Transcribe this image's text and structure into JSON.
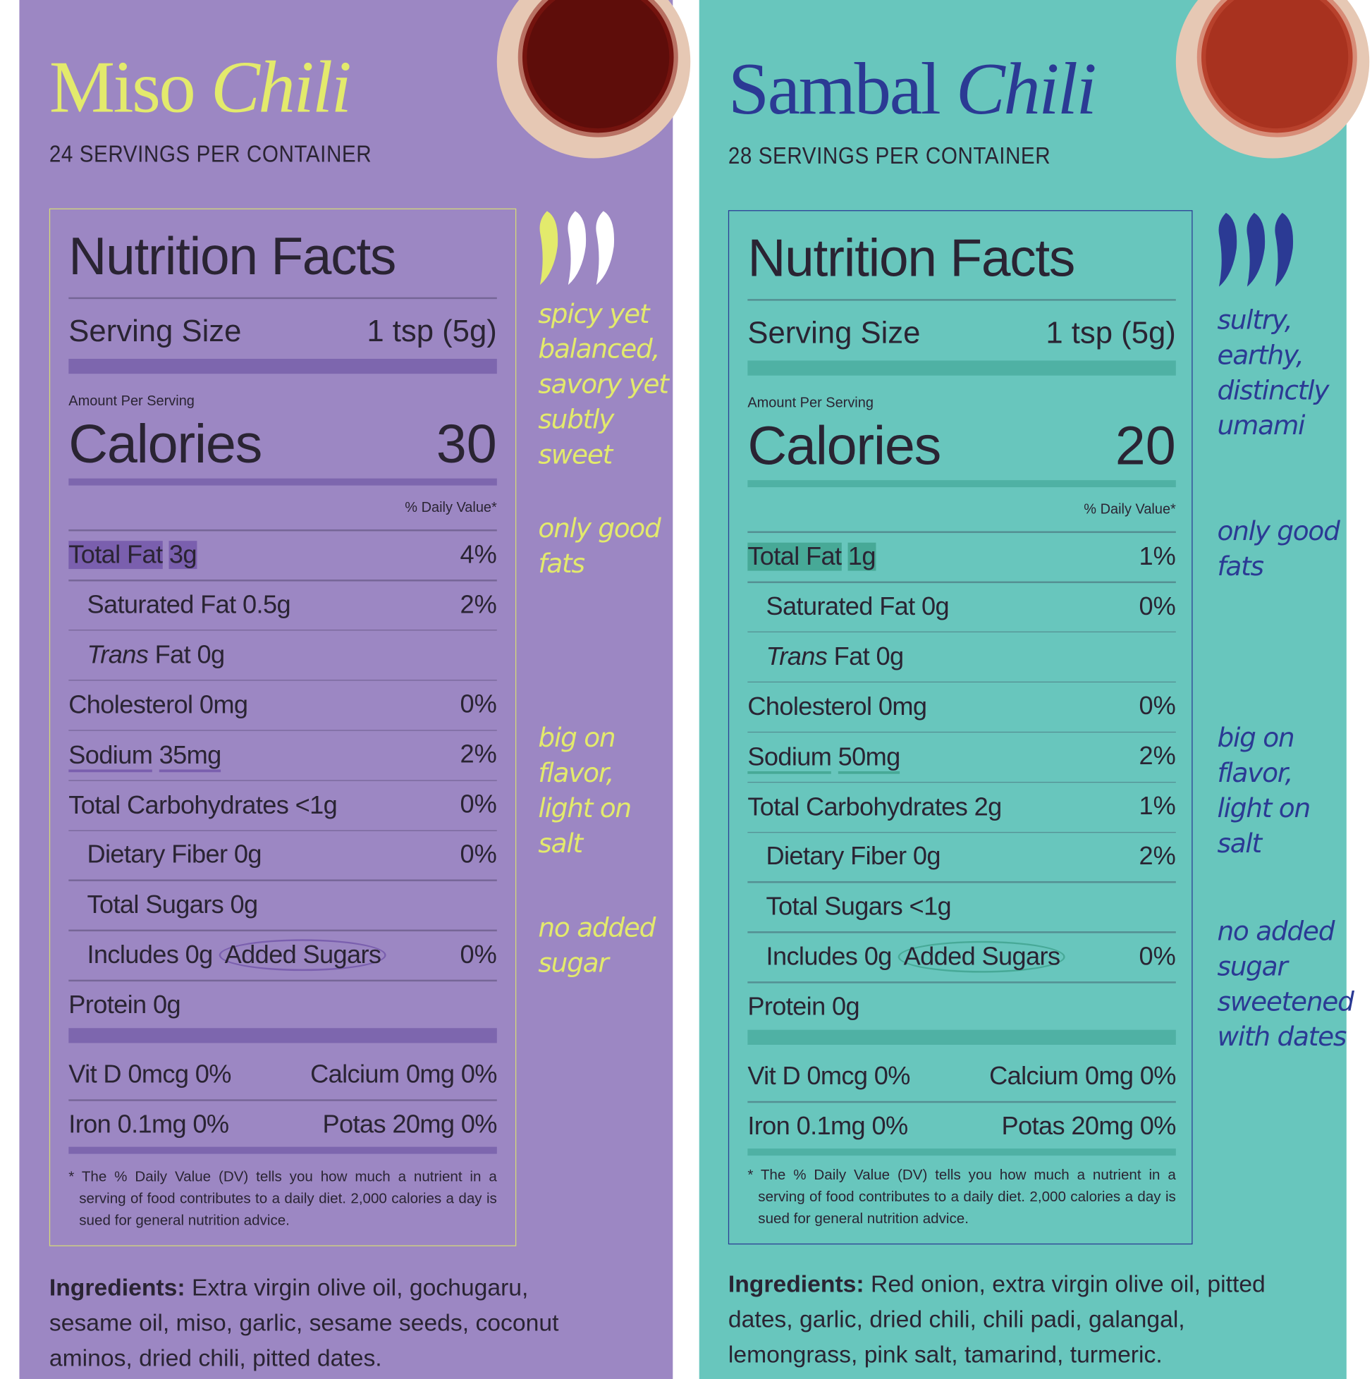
{
  "panels": [
    {
      "title_a": "Miso",
      "title_b": "Chili",
      "servings": "24 SERVINGS PER CONTAINER",
      "facts_title": "Nutrition Facts",
      "serving_size_label": "Serving Size",
      "serving_size": "1 tsp (5g)",
      "amount_per_serving": "Amount Per Serving",
      "calories_label": "Calories",
      "calories": "30",
      "daily_value_header": "% Daily Value*",
      "rows": [
        {
          "label": "Total Fat",
          "amount": "3g",
          "dv": "4%",
          "highlight": true
        },
        {
          "label": "Saturated Fat",
          "amount": "0.5g",
          "dv": "2%",
          "indent": true
        },
        {
          "label_em": "Trans",
          "label": "Fat",
          "amount": "0g",
          "indent": true
        },
        {
          "label": "Cholesterol",
          "amount": "0mg",
          "dv": "0%"
        },
        {
          "label": "Sodium",
          "amount": "35mg",
          "dv": "2%",
          "underline": true
        },
        {
          "label": "Total Carbohydrates",
          "amount": "<1g",
          "dv": "0%"
        },
        {
          "label": "Dietary Fiber",
          "amount": "0g",
          "dv": "0%",
          "indent": true
        },
        {
          "label": "Total Sugars",
          "amount": "0g",
          "indent": true
        },
        {
          "label": "Includes",
          "amount": "0g",
          "suffix": "Added Sugars",
          "dv": "0%",
          "indent": true
        },
        {
          "label": "Protein",
          "amount": "0g"
        }
      ],
      "minerals": [
        [
          "Vit D 0mcg 0%",
          "Calcium 0mg 0%"
        ],
        [
          "Iron 0.1mg 0%",
          "Potas 20mg 0%"
        ]
      ],
      "footnote": "* The % Daily Value (DV) tells you how much a nutrient in a serving of food contributes to a daily diet. 2,000 calories a day is sued for general nutrition advice.",
      "ingredients_label": "Ingredients:",
      "ingredients": "Extra virgin olive oil, gochugaru, sesame oil, miso, garlic, sesame seeds, coconut aminos, dried chili, pitted dates.",
      "notes": [
        "spicy yet balanced, savory yet subtly sweet",
        "only good fats",
        "big on flavor, light on salt",
        "no added sugar"
      ],
      "theme": {
        "background": "#9c87c3",
        "title": "#e3ea6c",
        "bar": "#7d66ae",
        "note": "#e3ea6c",
        "highlight": "#7a5fae",
        "pepper": "#e3ea6c"
      }
    },
    {
      "title_a": "Sambal",
      "title_b": "Chili",
      "servings": "28 SERVINGS PER CONTAINER",
      "facts_title": "Nutrition Facts",
      "serving_size_label": "Serving Size",
      "serving_size": "1 tsp (5g)",
      "amount_per_serving": "Amount Per Serving",
      "calories_label": "Calories",
      "calories": "20",
      "daily_value_header": "% Daily Value*",
      "rows": [
        {
          "label": "Total Fat",
          "amount": "1g",
          "dv": "1%",
          "highlight": true
        },
        {
          "label": "Saturated Fat",
          "amount": "0g",
          "dv": "0%",
          "indent": true
        },
        {
          "label_em": "Trans",
          "label": "Fat",
          "amount": "0g",
          "indent": true
        },
        {
          "label": "Cholesterol",
          "amount": "0mg",
          "dv": "0%"
        },
        {
          "label": "Sodium",
          "amount": "50mg",
          "dv": "2%",
          "underline": true
        },
        {
          "label": "Total Carbohydrates",
          "amount": "2g",
          "dv": "1%"
        },
        {
          "label": "Dietary Fiber",
          "amount": "0g",
          "dv": "2%",
          "indent": true
        },
        {
          "label": "Total Sugars",
          "amount": "<1g",
          "indent": true
        },
        {
          "label": "Includes",
          "amount": "0g",
          "suffix": "Added Sugars",
          "dv": "0%",
          "indent": true
        },
        {
          "label": "Protein",
          "amount": "0g"
        }
      ],
      "minerals": [
        [
          "Vit D 0mcg 0%",
          "Calcium 0mg 0%"
        ],
        [
          "Iron 0.1mg 0%",
          "Potas 20mg 0%"
        ]
      ],
      "footnote": "* The % Daily Value (DV) tells you how much a nutrient in a serving of food contributes to a daily diet. 2,000 calories a day is sued for general nutrition advice.",
      "ingredients_label": "Ingredients:",
      "ingredients": "Red onion, extra virgin olive oil, pitted dates, garlic, dried chili, chili padi, galangal, lemongrass, pink salt, tamarind, turmeric.",
      "notes": [
        "sultry, earthy, distinctly umami",
        "only good fats",
        "big on flavor, light on salt",
        "no added sugar sweetened with dates"
      ],
      "theme": {
        "background": "#68c6bd",
        "title": "#2b3a94",
        "bar": "#4fb1a4",
        "note": "#2b3a94",
        "highlight": "#47a997",
        "pepper": "#2b3a94"
      }
    }
  ]
}
